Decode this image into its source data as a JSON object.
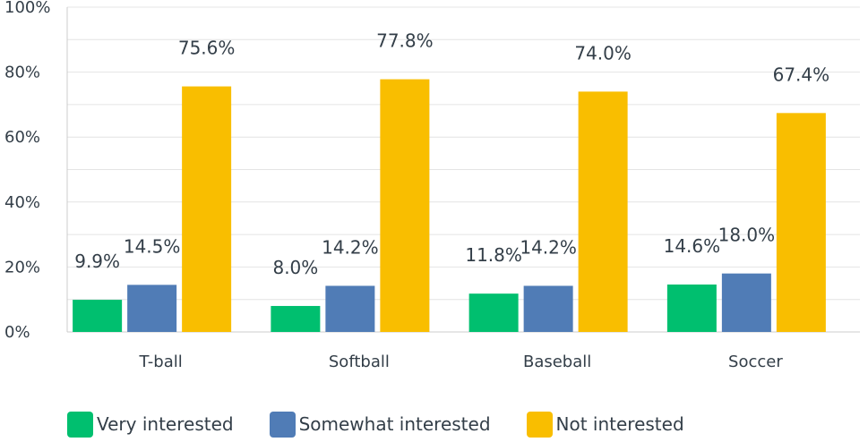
{
  "chart_data": {
    "type": "bar",
    "categories": [
      "T-ball",
      "Softball",
      "Baseball",
      "Soccer"
    ],
    "series": [
      {
        "name": "Very interested",
        "values": [
          9.9,
          8.0,
          11.8,
          14.6
        ],
        "labels": [
          "9.9%",
          "8.0%",
          "11.8%",
          "14.6%"
        ],
        "color": "#00bf6f"
      },
      {
        "name": "Somewhat interested",
        "values": [
          14.5,
          14.2,
          14.2,
          18.0
        ],
        "labels": [
          "14.5%",
          "14.2%",
          "14.2%",
          "18.0%"
        ],
        "color": "#507cb6"
      },
      {
        "name": "Not interested",
        "values": [
          75.6,
          77.8,
          74.0,
          67.4
        ],
        "labels": [
          "75.6%",
          "77.8%",
          "74.0%",
          "67.4%"
        ],
        "color": "#f9be00"
      }
    ],
    "y_ticks": [
      0,
      20,
      40,
      60,
      80,
      100
    ],
    "y_tick_labels": [
      "0%",
      "20%",
      "40%",
      "60%",
      "80%",
      "100%"
    ],
    "ylim": [
      0,
      100
    ],
    "grid": true,
    "legend_position": "bottom-left",
    "title": "",
    "xlabel": "",
    "ylabel": ""
  }
}
